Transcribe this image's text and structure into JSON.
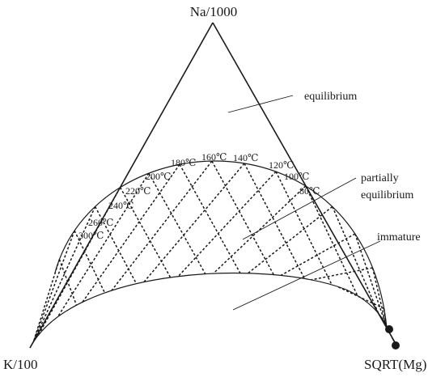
{
  "vertices": {
    "top": "Na/1000",
    "left": "K/100",
    "right": "SQRT(Mg)"
  },
  "regions": {
    "equilibrium": "equilibrium",
    "partial_line1": "partially",
    "partial_line2": "equilibrium",
    "immature": "immature"
  },
  "temperatures": [
    "80℃",
    "100℃",
    "120℃",
    "140℃",
    "160℃",
    "180℃",
    "200℃",
    "220℃",
    "240℃",
    "260℃",
    "300℃"
  ]
}
